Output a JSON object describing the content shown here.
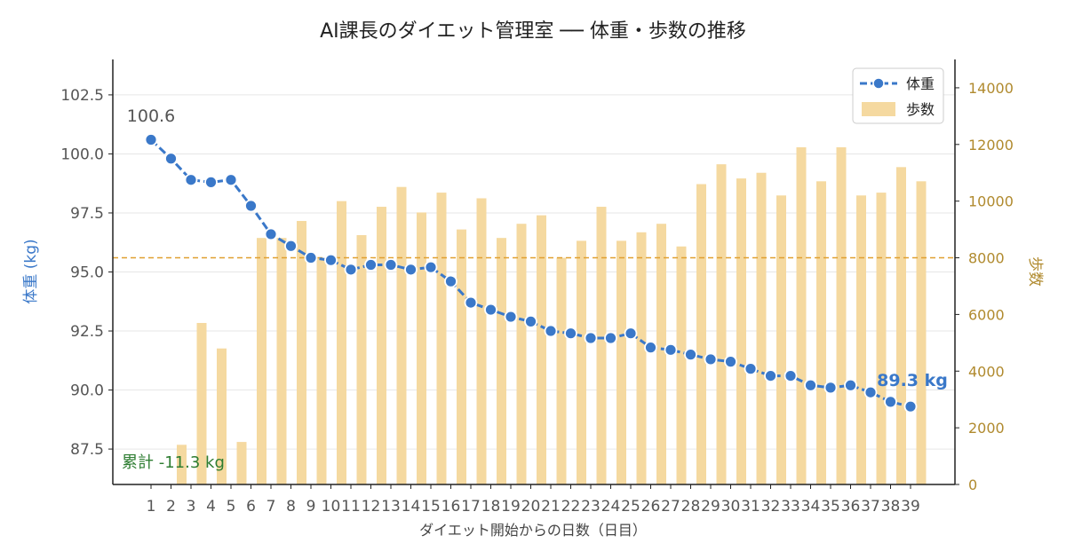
{
  "chart_data": {
    "type": "bar+line",
    "title": "AI課長のダイエット管理室 ── 体重・歩数の推移",
    "xlabel": "ダイエット開始からの日数（日目）",
    "ylabel_left": "体重 (kg)",
    "ylabel_right": "歩数",
    "categories": [
      "1",
      "2",
      "3",
      "4",
      "5",
      "6",
      "7",
      "8",
      "9",
      "10",
      "11",
      "12",
      "13",
      "14",
      "15",
      "16",
      "17",
      "18",
      "19",
      "20",
      "21",
      "22",
      "23",
      "24",
      "25",
      "26",
      "27",
      "28",
      "29",
      "30",
      "31",
      "32",
      "33",
      "34",
      "35",
      "36",
      "37",
      "38",
      "39"
    ],
    "series": [
      {
        "name": "体重",
        "axis": "left",
        "type": "line",
        "color": "#3a78c9",
        "values": [
          100.6,
          99.8,
          98.9,
          98.8,
          98.9,
          97.8,
          96.6,
          96.1,
          95.6,
          95.5,
          95.1,
          95.3,
          95.3,
          95.1,
          95.2,
          94.6,
          93.7,
          93.4,
          93.1,
          92.9,
          92.5,
          92.4,
          92.2,
          92.2,
          92.4,
          91.8,
          91.7,
          91.5,
          91.3,
          91.2,
          90.9,
          90.6,
          90.6,
          90.2,
          90.1,
          90.2,
          89.9,
          89.5,
          89.3
        ]
      },
      {
        "name": "歩数",
        "axis": "right",
        "type": "bar",
        "color": "#f5d9a0",
        "values": [
          0,
          1400,
          5700,
          4800,
          1500,
          8700,
          8700,
          9300,
          8000,
          10000,
          8800,
          9800,
          10500,
          9600,
          10300,
          9000,
          10100,
          8700,
          9200,
          9500,
          8000,
          8600,
          9800,
          8600,
          8900,
          9200,
          8400,
          10600,
          11300,
          10800,
          11000,
          10200,
          11900,
          10700,
          11900,
          10200,
          10300,
          11200,
          10700
        ]
      }
    ],
    "yleft_lim": [
      86,
      104
    ],
    "yleft_ticks": [
      87.5,
      90.0,
      92.5,
      95.0,
      97.5,
      100.0,
      102.5
    ],
    "yright_lim": [
      0,
      15000
    ],
    "yright_ticks": [
      0,
      2000,
      4000,
      6000,
      8000,
      10000,
      12000,
      14000
    ],
    "reference_line": {
      "axis": "right",
      "value": 8000,
      "color": "#e0a030"
    },
    "annotations": {
      "start_value": "100.6",
      "end_value": "89.3 kg",
      "total": "累計 -11.3 kg"
    },
    "legend": {
      "placement": "top-right"
    },
    "grid": true
  },
  "colors": {
    "weight": "#3a78c9",
    "steps": "#f5d9a0",
    "right_axis": "#b08a2e",
    "total": "#2e7d32",
    "reference": "#e0a030"
  }
}
